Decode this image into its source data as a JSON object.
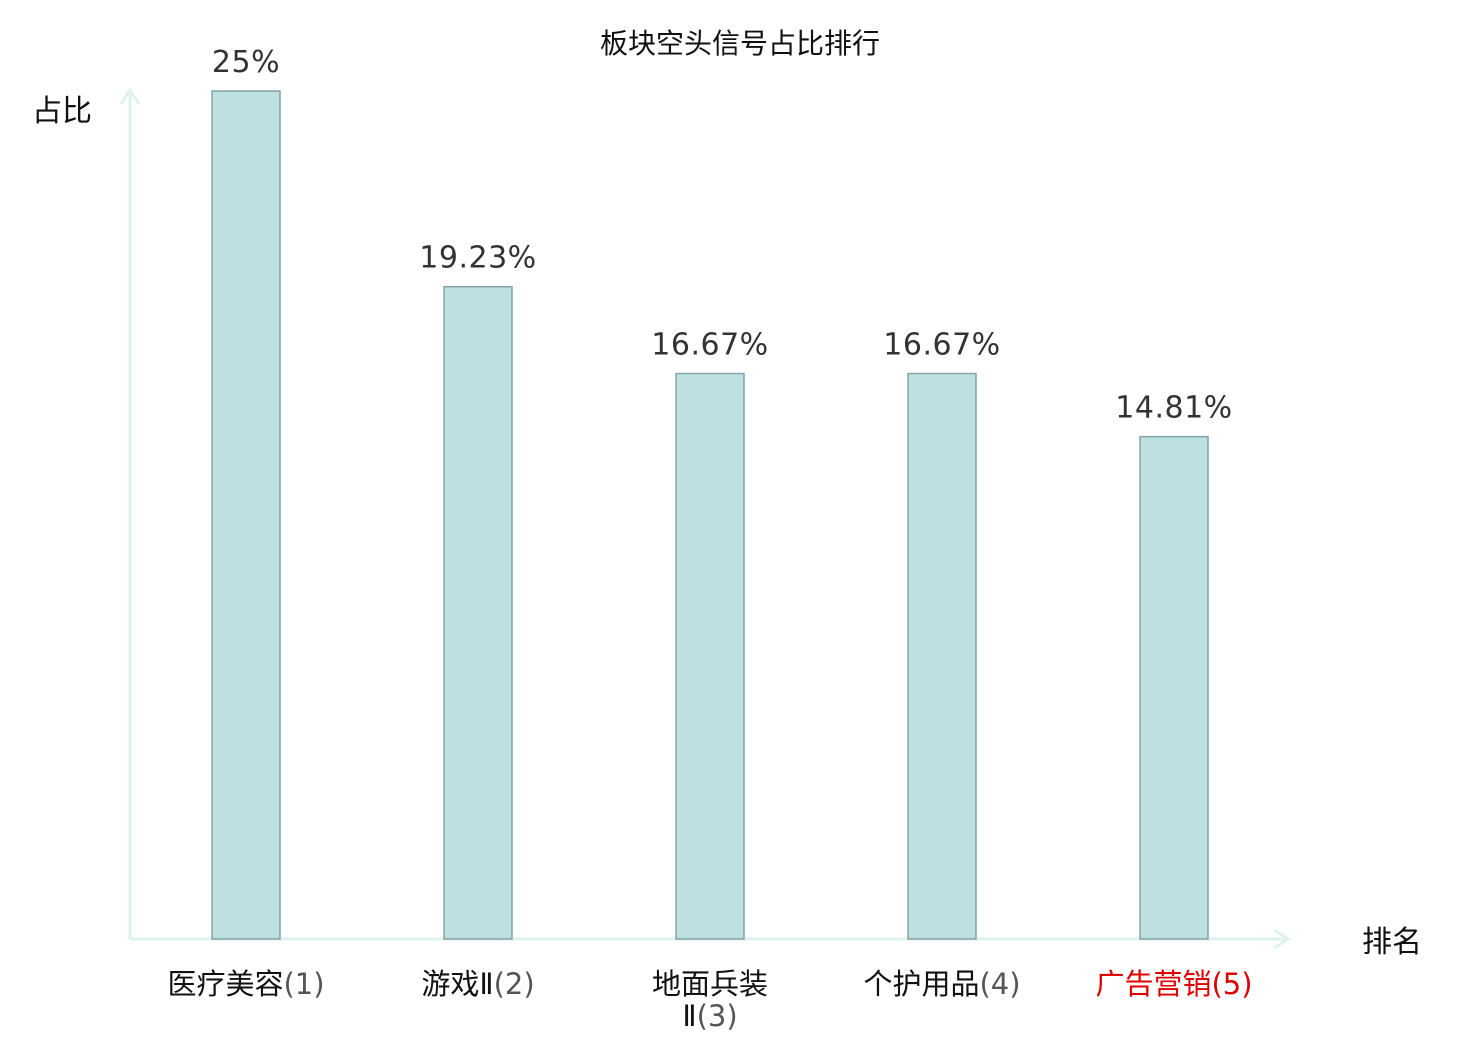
{
  "chart_data": {
    "type": "bar",
    "title": "板块空头信号占比排行",
    "ylabel": "占比",
    "xlabel": "排名",
    "categories": [
      {
        "name": "医疗美容",
        "rank": "(1)",
        "highlight": false
      },
      {
        "name": "游戏Ⅱ",
        "rank": "(2)",
        "highlight": false
      },
      {
        "name": "地面兵装",
        "name2": "Ⅱ",
        "rank": "(3)",
        "highlight": false
      },
      {
        "name": "个护用品",
        "rank": "(4)",
        "highlight": false
      },
      {
        "name": "广告营销",
        "rank": "(5)",
        "highlight": true
      }
    ],
    "values": [
      25,
      19.23,
      16.67,
      16.67,
      14.81
    ],
    "value_labels": [
      "25%",
      "19.23%",
      "16.67%",
      "16.67%",
      "14.81%"
    ],
    "ylim": [
      0,
      25
    ],
    "grid": false,
    "legend": "none",
    "colors": {
      "bar_fill": "#bde0e2",
      "bar_stroke": "#86a3a6",
      "axis": "#dff2f0",
      "highlight": "#e00000",
      "rank_text": "#555555",
      "text": "#111111"
    }
  }
}
